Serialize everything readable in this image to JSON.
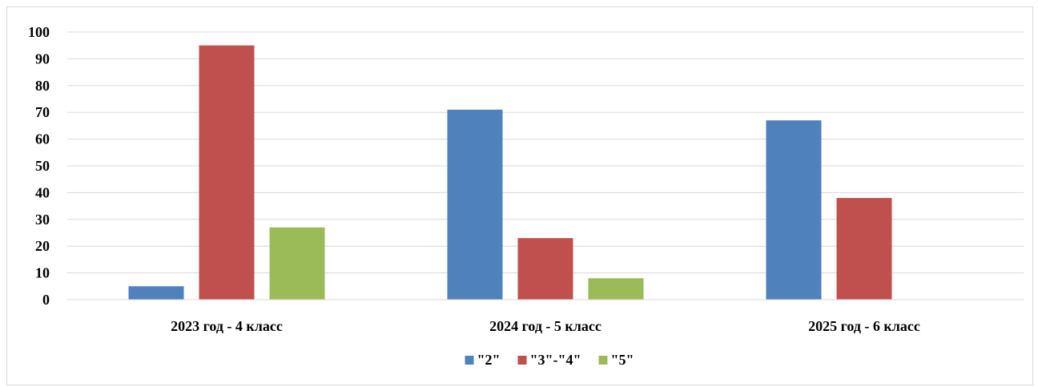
{
  "chart_data": {
    "type": "bar",
    "categories": [
      "2023 год - 4 класс",
      "2024 год - 5 класс",
      "2025 год - 6 класс"
    ],
    "series": [
      {
        "name": "\"2\"",
        "values": [
          5,
          71,
          67
        ],
        "color": "#4f81bd"
      },
      {
        "name": "\"3\"-\"4\"",
        "values": [
          95,
          23,
          38
        ],
        "color": "#c0504d"
      },
      {
        "name": "\"5\"",
        "values": [
          27,
          8,
          0
        ],
        "color": "#9bbb59"
      }
    ],
    "title": "",
    "xlabel": "",
    "ylabel": "",
    "ylim": [
      0,
      100
    ],
    "yticks": [
      0,
      10,
      20,
      30,
      40,
      50,
      60,
      70,
      80,
      90,
      100
    ],
    "grid": true,
    "legend_position": "bottom",
    "gridline_color": "#d9d9d9"
  }
}
